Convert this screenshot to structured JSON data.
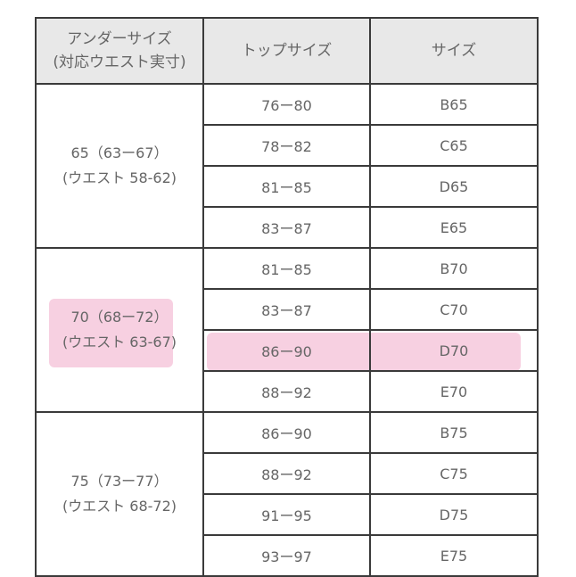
{
  "header": {
    "under_size_line1": "アンダーサイズ",
    "under_size_line2": "(対応ウエスト実寸)",
    "top_size": "トップサイズ",
    "size": "サイズ"
  },
  "groups": [
    {
      "under_line1": "65（63ー67）",
      "under_line2": "(ウエスト 58-62)",
      "rows": [
        {
          "top": "76ー80",
          "size": "B65"
        },
        {
          "top": "78ー82",
          "size": "C65"
        },
        {
          "top": "81ー85",
          "size": "D65"
        },
        {
          "top": "83ー87",
          "size": "E65"
        }
      ]
    },
    {
      "under_line1": "70（68ー72）",
      "under_line2": "(ウエスト 63-67)",
      "highlighted": true,
      "rows": [
        {
          "top": "81ー85",
          "size": "B70"
        },
        {
          "top": "83ー87",
          "size": "C70"
        },
        {
          "top": "86ー90",
          "size": "D70",
          "highlighted": true
        },
        {
          "top": "88ー92",
          "size": "E70"
        }
      ]
    },
    {
      "under_line1": "75（73ー77）",
      "under_line2": "(ウエスト 68-72)",
      "rows": [
        {
          "top": "86ー90",
          "size": "B75"
        },
        {
          "top": "88ー92",
          "size": "C75"
        },
        {
          "top": "91ー95",
          "size": "D75"
        },
        {
          "top": "93ー97",
          "size": "E75"
        }
      ]
    }
  ],
  "colors": {
    "highlight": "#f4c6d8",
    "header_bg": "#e8e8e8",
    "text": "#666666",
    "border": "#3a3a3a"
  }
}
